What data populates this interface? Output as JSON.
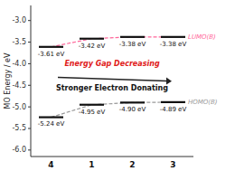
{
  "chart_data": {
    "type": "line",
    "categories": [
      "4",
      "1",
      "2",
      "3"
    ],
    "series": [
      {
        "name": "LUMO(B)",
        "color": "#ff6699",
        "line_style": "dashed",
        "values": [
          -3.61,
          -3.42,
          -3.38,
          -3.38
        ],
        "value_labels": [
          "-3.61 eV",
          "-3.42 eV",
          "-3.38 eV",
          "-3.38 eV"
        ]
      },
      {
        "name": "HOMO(B)",
        "color": "#999999",
        "line_style": "dashed",
        "values": [
          -5.24,
          -4.95,
          -4.9,
          -4.89
        ],
        "value_labels": [
          "-5.24 eV",
          "-4.95 eV",
          "-4.90 eV",
          "-4.89 eV"
        ]
      }
    ],
    "ylabel": "MO Energy / eV",
    "ylim": [
      -6.15,
      -2.65
    ],
    "yticks": [
      {
        "value": -3.0,
        "label": "-3.0"
      },
      -3.5,
      {
        "value": -4.0,
        "label": "-4.0"
      },
      -4.5,
      {
        "value": -5.0,
        "label": "-5.0"
      },
      -5.5,
      {
        "value": -6.0,
        "label": "-6.0"
      }
    ],
    "annotations": [
      "Energy Gap Decreasing",
      "Stronger Electron Donating"
    ],
    "data_labels": true,
    "grid": false
  }
}
